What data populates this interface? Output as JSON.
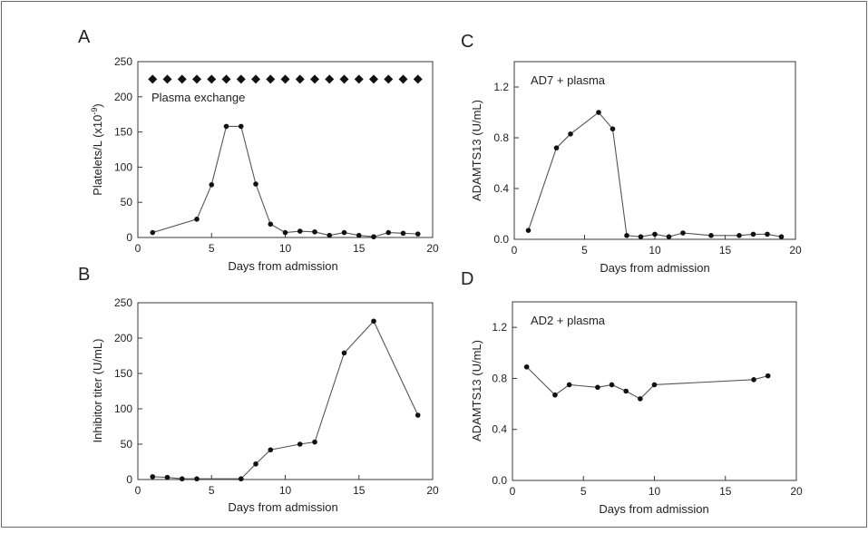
{
  "chart_data": [
    {
      "panel": "A",
      "type": "line",
      "xlabel": "Days from admission",
      "ylabel": "Platelets/L (x10",
      "ylabel_sup": "-9",
      "ylabel_close": ")",
      "xlim": [
        0,
        20
      ],
      "ylim": [
        0,
        250
      ],
      "xticks": [
        0,
        5,
        10,
        15,
        20
      ],
      "yticks": [
        0,
        50,
        100,
        150,
        200,
        250
      ],
      "annotation": "Plasma exchange",
      "marker_series": {
        "marker": "diamond",
        "y": 225,
        "x": [
          1,
          2,
          3,
          4,
          5,
          6,
          7,
          8,
          9,
          10,
          11,
          12,
          13,
          14,
          15,
          16,
          17,
          18,
          19
        ]
      },
      "series": [
        {
          "marker": "circle",
          "x": [
            1,
            4,
            5,
            6,
            7,
            8,
            9,
            10,
            11,
            12,
            13,
            14,
            15,
            16,
            17,
            18,
            19
          ],
          "y": [
            7,
            26,
            75,
            158,
            158,
            76,
            19,
            7,
            9,
            8,
            3,
            7,
            3,
            1,
            7,
            6,
            5
          ]
        }
      ]
    },
    {
      "panel": "B",
      "type": "line",
      "xlabel": "Days from admission",
      "ylabel": "Inhibitor titer (U/mL)",
      "xlim": [
        0,
        20
      ],
      "ylim": [
        0,
        250
      ],
      "xticks": [
        0,
        5,
        10,
        15,
        20
      ],
      "yticks": [
        0,
        50,
        100,
        150,
        200,
        250
      ],
      "series": [
        {
          "marker": "circle",
          "x": [
            1,
            2,
            3,
            4,
            7,
            8,
            9,
            11,
            12,
            14,
            16,
            19
          ],
          "y": [
            4,
            3,
            1,
            1,
            1,
            22,
            42,
            50,
            53,
            179,
            224,
            91
          ]
        }
      ]
    },
    {
      "panel": "C",
      "type": "line",
      "xlabel": "Days from admission",
      "ylabel": "ADAMTS13 (U/mL)",
      "xlim": [
        0,
        20
      ],
      "ylim": [
        0,
        1.4
      ],
      "xticks": [
        0,
        5,
        10,
        15,
        20
      ],
      "yticks": [
        0.0,
        0.4,
        0.8,
        1.2
      ],
      "ytick_labels": [
        "0.0",
        "0.4",
        "0.8",
        "1.2"
      ],
      "annotation": "AD7 + plasma",
      "series": [
        {
          "marker": "circle",
          "x": [
            1,
            3,
            4,
            6,
            7,
            8,
            9,
            10,
            11,
            12,
            14,
            16,
            17,
            18,
            19
          ],
          "y": [
            0.07,
            0.72,
            0.83,
            1.0,
            0.87,
            0.03,
            0.02,
            0.04,
            0.02,
            0.05,
            0.03,
            0.03,
            0.04,
            0.04,
            0.02
          ]
        }
      ]
    },
    {
      "panel": "D",
      "type": "line",
      "xlabel": "Days from admission",
      "ylabel": "ADAMTS13 (U/mL)",
      "xlim": [
        0,
        20
      ],
      "ylim": [
        0,
        1.4
      ],
      "xticks": [
        0,
        5,
        10,
        15,
        20
      ],
      "yticks": [
        0.0,
        0.4,
        0.8,
        1.2
      ],
      "ytick_labels": [
        "0.0",
        "0.4",
        "0.8",
        "1.2"
      ],
      "annotation": "AD2 + plasma",
      "series": [
        {
          "marker": "circle",
          "x": [
            1,
            3,
            4,
            6,
            7,
            8,
            9,
            10,
            17,
            18
          ],
          "y": [
            0.89,
            0.67,
            0.75,
            0.73,
            0.75,
            0.7,
            0.64,
            0.75,
            0.79,
            0.82
          ]
        }
      ]
    }
  ]
}
